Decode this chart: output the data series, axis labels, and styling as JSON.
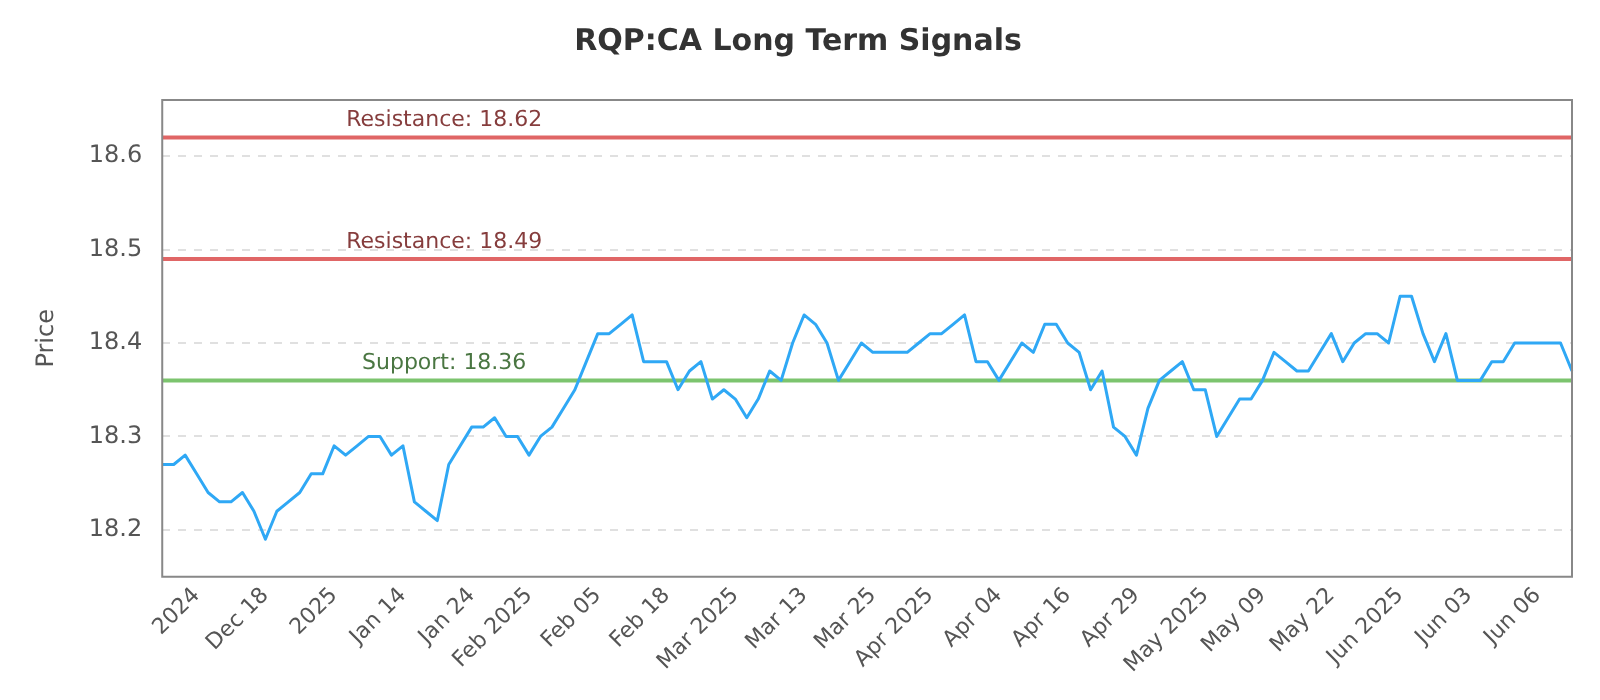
{
  "chart_data": {
    "type": "line",
    "title": "RQP:CA Long Term Signals",
    "ylabel": "Price",
    "categories": [
      null,
      null,
      null,
      "2024",
      null,
      null,
      null,
      null,
      null,
      "Dec 18",
      null,
      null,
      null,
      null,
      null,
      "2025",
      null,
      null,
      null,
      null,
      null,
      "Jan 14",
      null,
      null,
      null,
      null,
      null,
      "Jan 24",
      null,
      null,
      null,
      null,
      "Feb 2025",
      null,
      null,
      null,
      null,
      null,
      "Feb 05",
      null,
      null,
      null,
      null,
      null,
      "Feb 18",
      null,
      null,
      null,
      null,
      null,
      "Mar 2025",
      null,
      null,
      null,
      null,
      null,
      "Mar 13",
      null,
      null,
      null,
      null,
      null,
      "Mar 25",
      null,
      null,
      null,
      null,
      "Apr 2025",
      null,
      null,
      null,
      null,
      null,
      "Apr 04",
      null,
      null,
      null,
      null,
      null,
      "Apr 16",
      null,
      null,
      null,
      null,
      null,
      "Apr 29",
      null,
      null,
      null,
      null,
      null,
      "May 2025",
      null,
      null,
      null,
      null,
      "May 09",
      null,
      null,
      null,
      null,
      null,
      "May 22",
      null,
      null,
      null,
      null,
      null,
      "Jun 2025",
      null,
      null,
      null,
      null,
      null,
      "Jun 03",
      null,
      null,
      null,
      null,
      null,
      "Jun 06",
      null,
      null,
      null
    ],
    "series": [
      {
        "color": "#2fa8f5",
        "values": [
          18.27,
          18.27,
          18.28,
          18.26,
          18.24,
          18.23,
          18.23,
          18.24,
          18.22,
          18.19,
          18.22,
          18.23,
          18.24,
          18.26,
          18.26,
          18.29,
          18.28,
          18.29,
          18.3,
          18.3,
          18.28,
          18.29,
          18.23,
          18.22,
          18.21,
          18.27,
          18.29,
          18.31,
          18.31,
          18.32,
          18.3,
          18.3,
          18.28,
          18.3,
          18.31,
          18.33,
          18.35,
          18.38,
          18.41,
          18.41,
          18.42,
          18.43,
          18.38,
          18.38,
          18.38,
          18.35,
          18.37,
          18.38,
          18.34,
          18.35,
          18.34,
          18.32,
          18.34,
          18.37,
          18.36,
          18.4,
          18.43,
          18.42,
          18.4,
          18.36,
          18.38,
          18.4,
          18.39,
          18.39,
          18.39,
          18.39,
          18.4,
          18.41,
          18.41,
          18.42,
          18.43,
          18.38,
          18.38,
          18.36,
          18.38,
          18.4,
          18.39,
          18.42,
          18.42,
          18.4,
          18.39,
          18.35,
          18.37,
          18.31,
          18.3,
          18.28,
          18.33,
          18.36,
          18.37,
          18.38,
          18.35,
          18.35,
          18.3,
          18.32,
          18.34,
          18.34,
          18.36,
          18.39,
          18.38,
          18.37,
          18.37,
          18.39,
          18.41,
          18.38,
          18.4,
          18.41,
          18.41,
          18.4,
          18.45,
          18.45,
          18.41,
          18.38,
          18.41,
          18.36,
          18.36,
          18.36,
          18.38,
          18.38,
          18.4,
          18.4,
          18.4,
          18.4,
          18.4,
          18.37
        ]
      }
    ],
    "ylim": [
      18.15,
      18.66
    ],
    "yticks": [
      18.2,
      18.3,
      18.4,
      18.5,
      18.6
    ],
    "grid": "y",
    "legend": false,
    "marker": "none",
    "line_style": "solid",
    "ref_lines": [
      {
        "axis": "y",
        "value": 18.62,
        "label": "Resistance: 18.62",
        "color": "#e06666"
      },
      {
        "axis": "y",
        "value": 18.49,
        "label": "Resistance: 18.49",
        "color": "#e06666"
      },
      {
        "axis": "y",
        "value": 18.36,
        "label": "Support: 18.36",
        "color": "#7cc46e"
      }
    ]
  }
}
